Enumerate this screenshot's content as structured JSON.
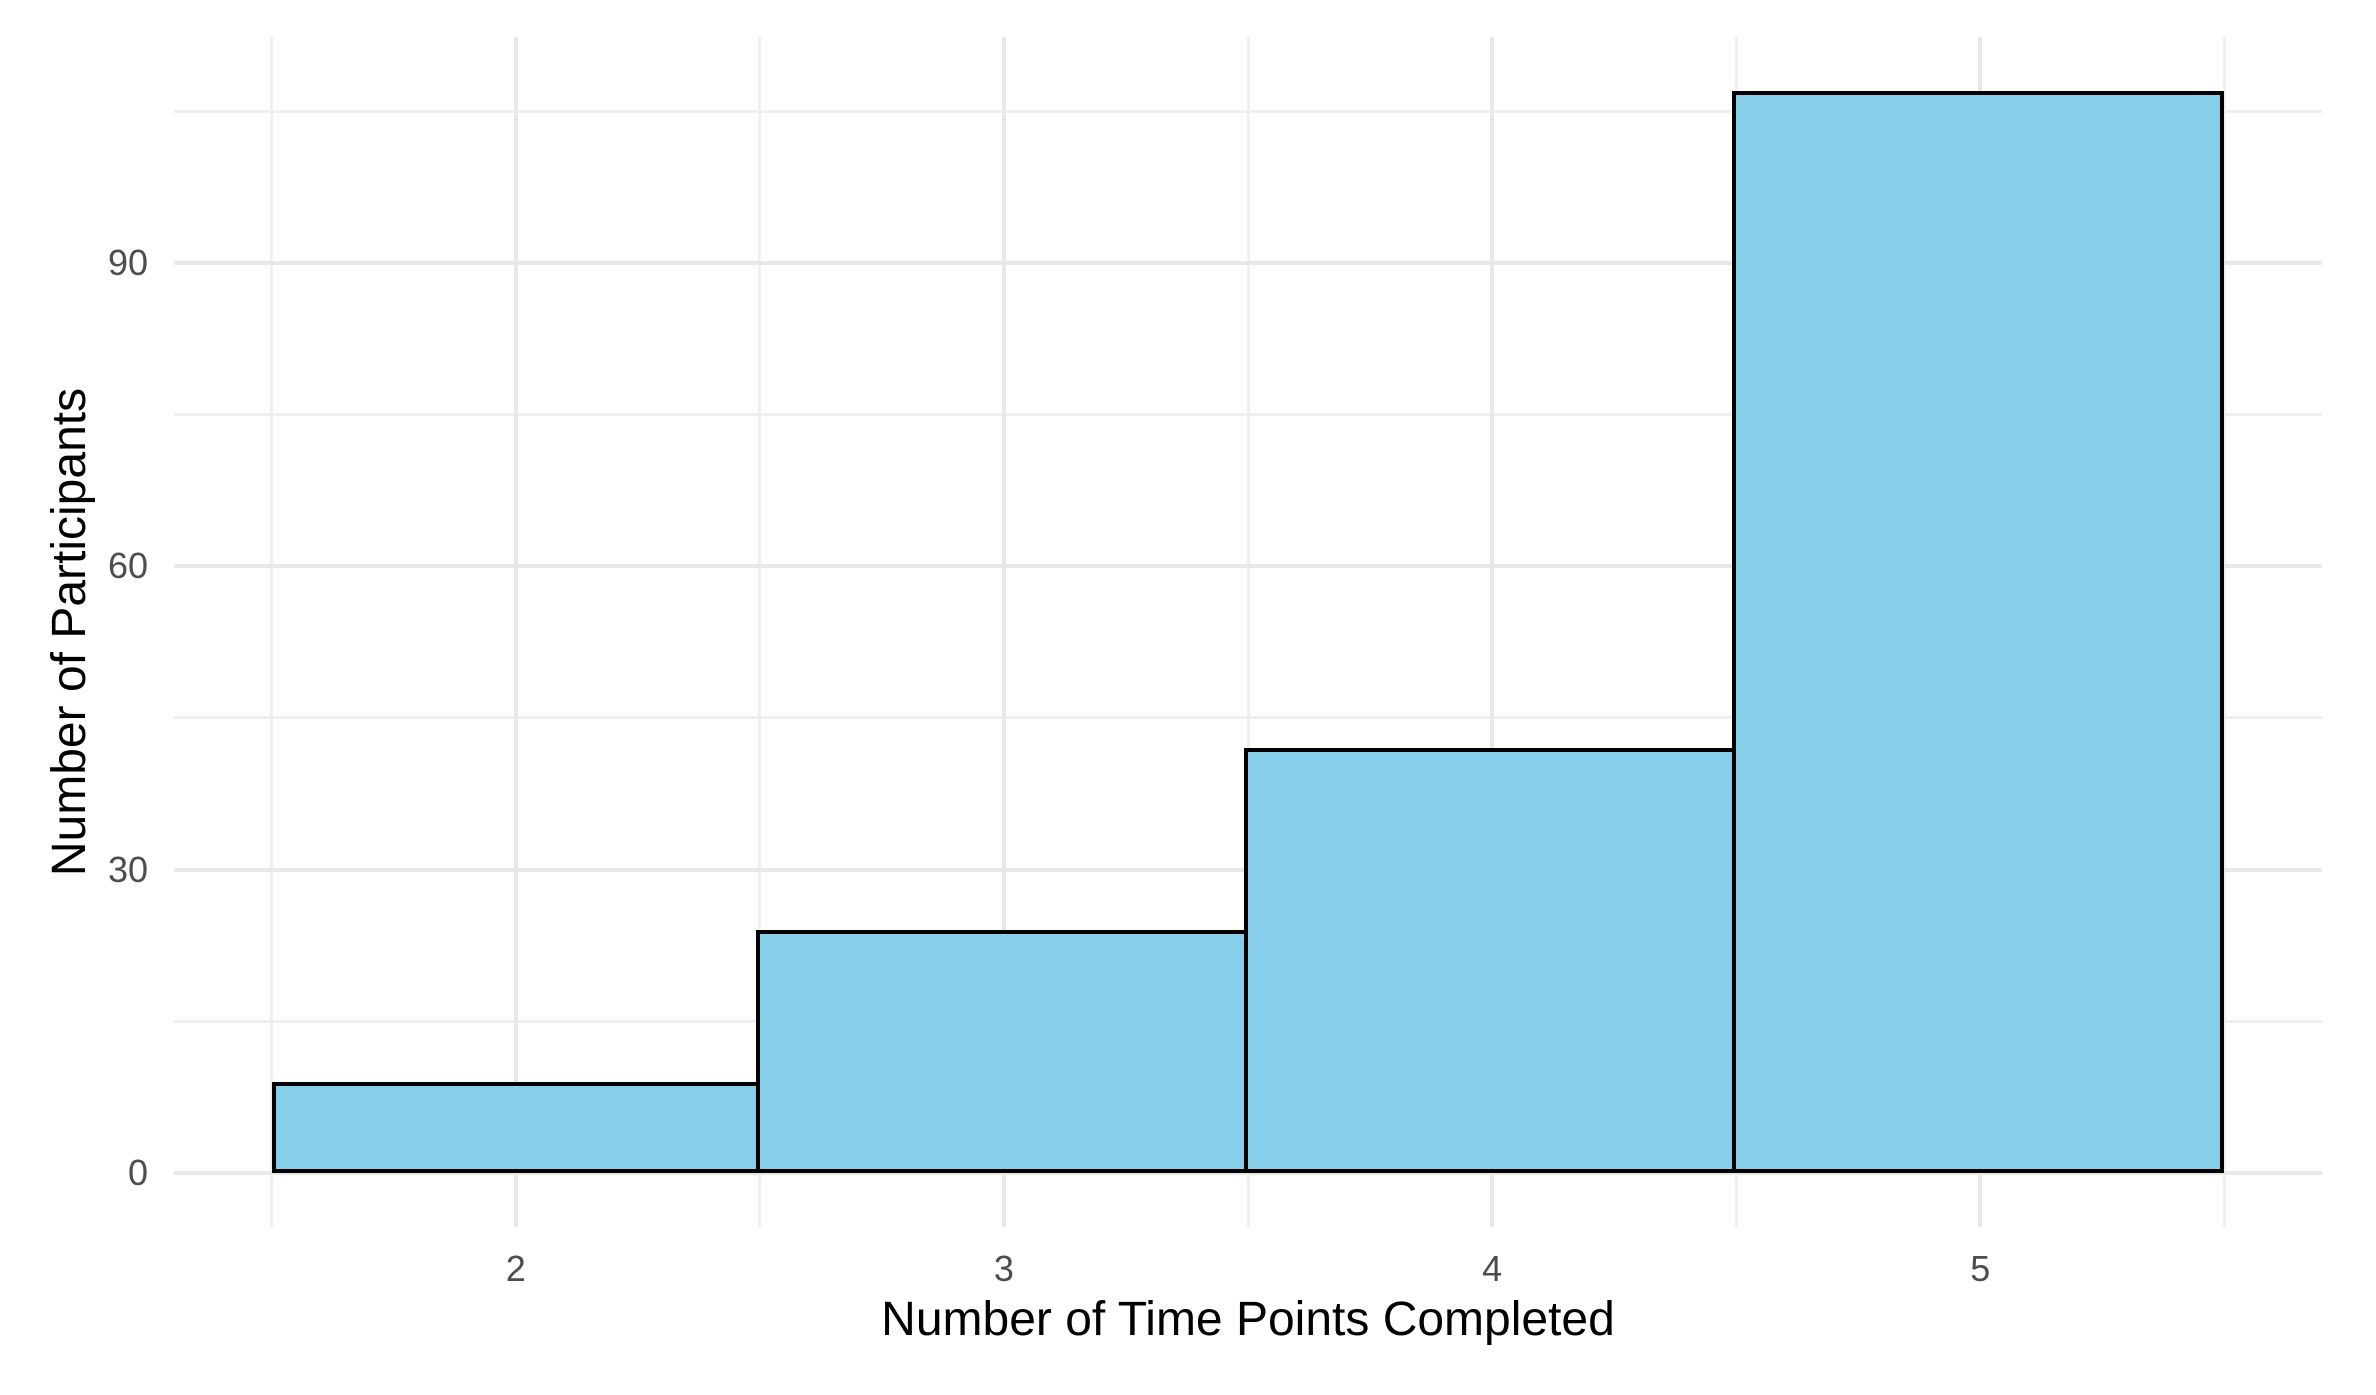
{
  "chart_data": {
    "type": "bar",
    "subtype": "histogram",
    "title": "",
    "xlabel": "Number of Time Points Completed",
    "ylabel": "Number of Participants",
    "categories": [
      2,
      3,
      4,
      5
    ],
    "values": [
      9,
      24,
      42,
      107
    ],
    "bin_width": 1,
    "x_tick_labels": [
      "2",
      "3",
      "4",
      "5"
    ],
    "x_tick_values": [
      2,
      3,
      4,
      5
    ],
    "y_tick_labels": [
      "0",
      "30",
      "60",
      "90"
    ],
    "y_tick_values": [
      0,
      30,
      60,
      90
    ],
    "x_minor_gridlines": [
      1.5,
      2.5,
      3.5,
      4.5,
      5.5
    ],
    "y_minor_gridlines": [
      15,
      45,
      75,
      105
    ],
    "xlim": [
      1.3,
      5.7
    ],
    "ylim": [
      -5.35,
      112.35
    ],
    "grid": "major and minor, no axis lines, no ticks",
    "legend_position": "none",
    "colors": {
      "bar_fill": "#87CEEB",
      "bar_border": "#000000",
      "grid_major": "#E8E8E8",
      "grid_minor": "#EFEFEF",
      "tick_label": "#4D4D4D",
      "axis_title": "#000000",
      "background": "#FFFFFF"
    }
  }
}
